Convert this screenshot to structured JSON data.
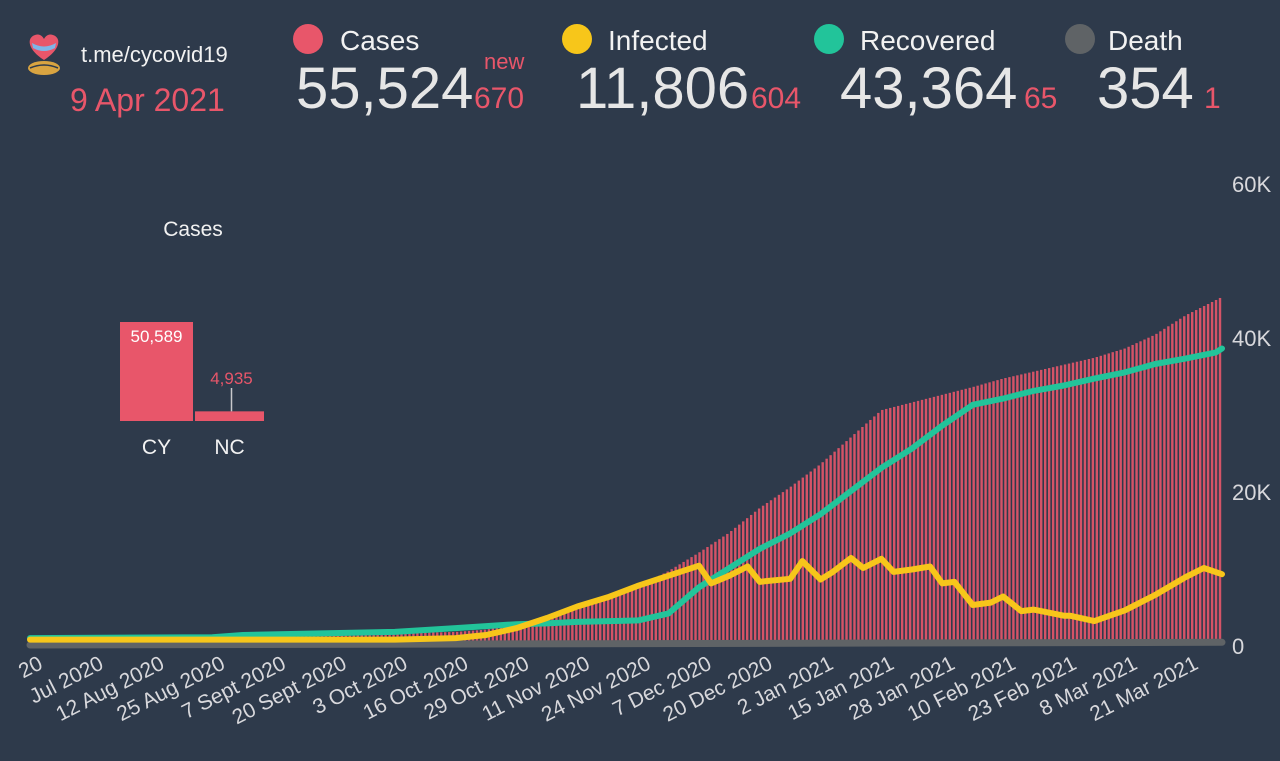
{
  "header": {
    "channel": "t.me/cycovid19",
    "date": "9 Apr 2021",
    "new_label": "new",
    "stats": [
      {
        "label": "Cases",
        "value": "55,524",
        "delta": "670",
        "color": "#e8566a"
      },
      {
        "label": "Infected",
        "value": "11,806",
        "delta": "604",
        "color": "#f7c61a"
      },
      {
        "label": "Recovered",
        "value": "43,364",
        "delta": "65",
        "color": "#22c49a"
      },
      {
        "label": "Death",
        "value": "354",
        "delta": "1",
        "color": "#5f6366"
      }
    ]
  },
  "chart_data": [
    {
      "type": "bar",
      "title": "Cases",
      "categories": [
        "CY",
        "NC"
      ],
      "values": [
        50589,
        4935
      ],
      "data_labels": [
        "50,589",
        "4,935"
      ],
      "color": "#e8566a"
    },
    {
      "type": "line",
      "ylim": [
        0,
        60000
      ],
      "y_ticks": [
        0,
        20000,
        40000,
        60000
      ],
      "y_tick_labels": [
        "0",
        "20K",
        "40K",
        "60K"
      ],
      "x_tick_labels": [
        "20",
        "Jul 2020",
        "12 Aug 2020",
        "25 Aug 2020",
        "7 Sept 2020",
        "20 Sept 2020",
        "3 Oct 2020",
        "16 Oct 2020",
        "29 Oct 2020",
        "11 Nov 2020",
        "24 Nov 2020",
        "7 Dec 2020",
        "20 Dec 2020",
        "2 Jan 2021",
        "15 Jan 2021",
        "28 Jan 2021",
        "10 Feb 2021",
        "23 Feb 2021",
        "8 Mar 2021",
        "21 Mar 2021"
      ],
      "x_range": [
        0,
        19.6
      ],
      "series": [
        {
          "name": "Cases",
          "type": "bar",
          "color": "#e8566a",
          "x": [
            0,
            3,
            4,
            5,
            6,
            7,
            7.5,
            8,
            8.5,
            9,
            9.5,
            10,
            10.5,
            11,
            11.5,
            12,
            12.5,
            13,
            13.5,
            14,
            14.5,
            15,
            15.5,
            16,
            16.5,
            17,
            17.5,
            18,
            18.5,
            19,
            19.6
          ],
          "y": [
            1000,
            1200,
            1300,
            1400,
            1500,
            1700,
            2000,
            2700,
            3600,
            4700,
            6100,
            7600,
            9600,
            12000,
            14600,
            17800,
            20500,
            23500,
            27000,
            30500,
            31500,
            32500,
            33500,
            34600,
            35500,
            36400,
            37300,
            38500,
            40300,
            42800,
            45200
          ]
        },
        {
          "name": "Infected",
          "type": "line",
          "color": "#f7c61a",
          "x": [
            0,
            6,
            7,
            7.5,
            8,
            8.5,
            9,
            9.5,
            10,
            10.5,
            11,
            11.2,
            11.5,
            11.8,
            12,
            12.1,
            12.5,
            12.7,
            13,
            13.2,
            13.5,
            13.7,
            14,
            14.2,
            14.5,
            14.8,
            15,
            15.2,
            15.5,
            15.8,
            16,
            16.3,
            16.5,
            17,
            17.1,
            17.5,
            18,
            18.5,
            19,
            19.3,
            19.6
          ],
          "y": [
            700,
            700,
            900,
            1300,
            2200,
            3500,
            5000,
            6200,
            7700,
            9000,
            10300,
            8000,
            9000,
            10200,
            8200,
            8300,
            8600,
            10900,
            8500,
            9500,
            11300,
            10000,
            11200,
            9500,
            9800,
            10200,
            8000,
            8200,
            5200,
            5500,
            6300,
            4400,
            4600,
            3800,
            3800,
            3100,
            4500,
            6500,
            8800,
            10000,
            9200
          ]
        },
        {
          "name": "Recovered",
          "type": "line",
          "color": "#22c49a",
          "x": [
            0,
            3,
            3.5,
            6,
            7,
            8,
            8.5,
            9,
            10,
            10.5,
            11,
            11.5,
            12,
            12.5,
            13,
            13.5,
            14,
            14.5,
            15,
            15.5,
            16,
            16.5,
            17,
            17.5,
            18,
            18.5,
            19,
            19.5,
            19.6
          ],
          "y": [
            900,
            1000,
            1300,
            1700,
            2200,
            2700,
            2800,
            3000,
            3200,
            4100,
            7500,
            10000,
            12500,
            14500,
            17000,
            20000,
            23000,
            25500,
            28500,
            31200,
            32000,
            33000,
            33700,
            34600,
            35400,
            36500,
            37200,
            38000,
            38500
          ]
        },
        {
          "name": "Death",
          "type": "line",
          "color": "#5f6366",
          "x": [
            0,
            19.6
          ],
          "y": [
            0,
            354
          ]
        }
      ]
    }
  ]
}
